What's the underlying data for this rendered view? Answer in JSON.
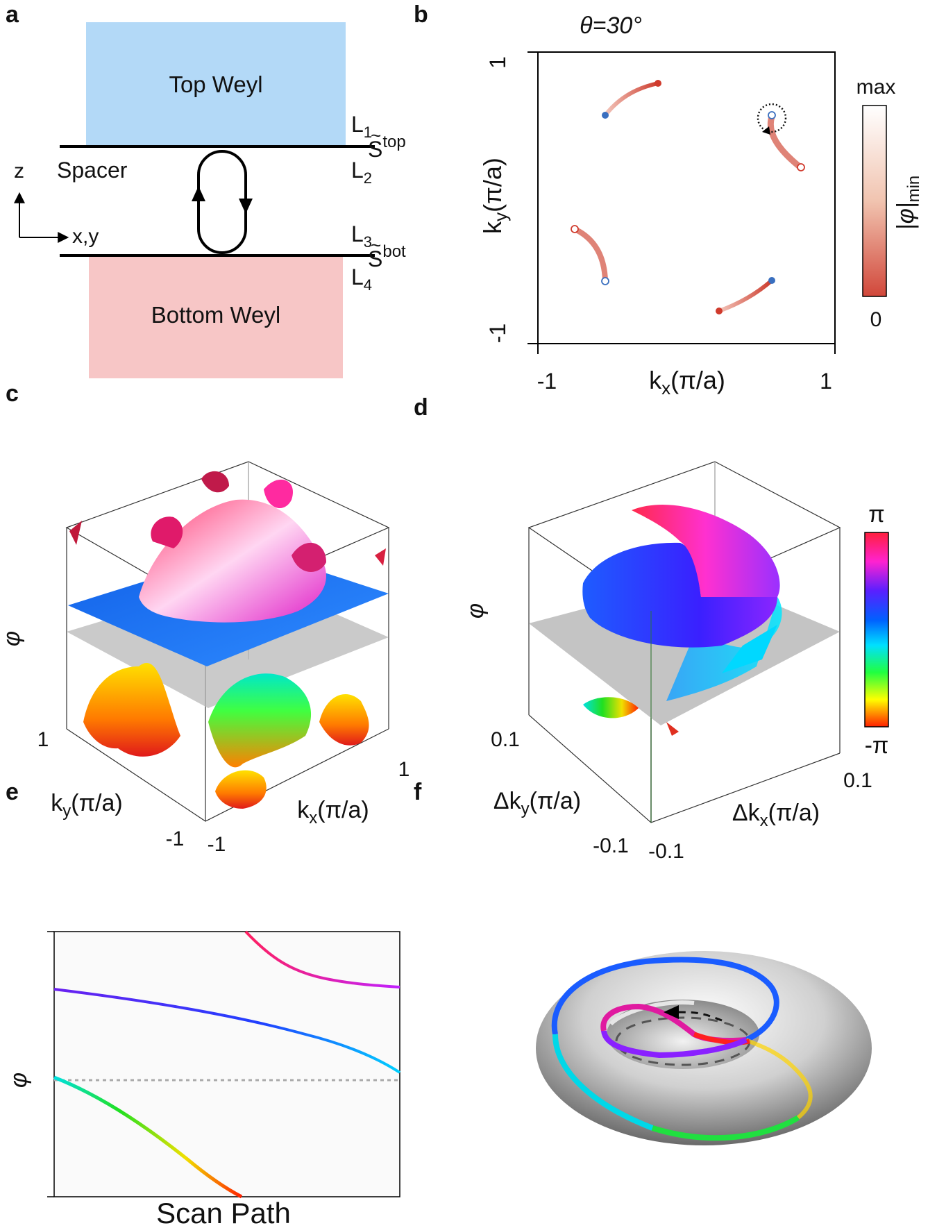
{
  "panels": {
    "a": {
      "letter": "a",
      "top_block": "Top Weyl",
      "bottom_block": "Bottom Weyl",
      "spacer": "Spacer",
      "axis_z": "z",
      "axis_xy": "x,y",
      "layer_labels": [
        "L",
        "1",
        "L",
        "2",
        "L",
        "3",
        "L",
        "4"
      ],
      "s_top": "S",
      "s_top_sup": "top",
      "s_bot": "S",
      "s_bot_sup": "bot",
      "tilde": "~",
      "colors": {
        "top": "#b3d9f7",
        "bottom": "#f7c6c6"
      }
    },
    "b": {
      "letter": "b",
      "title": "θ=30°",
      "xlabel_main": "k",
      "xlabel_sub": "x",
      "xlabel_tail": "(π/a)",
      "ylabel_main": "k",
      "ylabel_sub": "y",
      "ylabel_tail": "(π/a)",
      "x_ticks": [
        "-1",
        "1"
      ],
      "y_ticks": [
        "1",
        "-1"
      ],
      "colorbar_max": "max",
      "colorbar_min": "0",
      "colorbar_label": "|φ|",
      "colorbar_label_sub": "min"
    },
    "c": {
      "letter": "c",
      "zlabel": "φ",
      "ky_main": "k",
      "ky_sub": "y",
      "ky_tail": "(π/a)",
      "kx_main": "k",
      "kx_sub": "x",
      "kx_tail": "(π/a)",
      "ticks": {
        "ky_top": "1",
        "ky_bottom": "-1",
        "kx_left": "-1",
        "kx_right": "1"
      }
    },
    "d": {
      "letter": "d",
      "zlabel": "φ",
      "ky_main": "Δk",
      "ky_sub": "y",
      "ky_tail": "(π/a)",
      "kx_main": "Δk",
      "kx_sub": "x",
      "kx_tail": "(π/a)",
      "ticks": {
        "ky_top": "0.1",
        "ky_bottom": "-0.1",
        "kx_left": "-0.1",
        "kx_right": "0.1"
      },
      "colorbar_top": "π",
      "colorbar_bottom": "-π"
    },
    "e": {
      "letter": "e",
      "ylabel": "φ",
      "xlabel": "Scan Path"
    },
    "f": {
      "letter": "f"
    }
  }
}
